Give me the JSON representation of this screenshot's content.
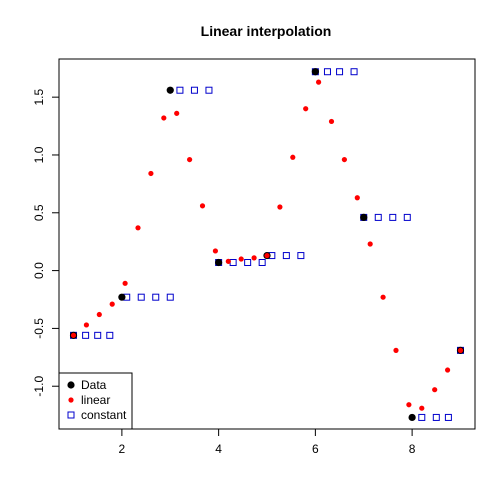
{
  "chart_data": {
    "type": "scatter",
    "title": "Linear interpolation",
    "xlabel": "",
    "ylabel": "",
    "xlim": [
      0.7,
      9.3
    ],
    "ylim": [
      -1.37,
      1.83
    ],
    "x_ticks": [
      2,
      4,
      6,
      8
    ],
    "y_ticks": [
      -1.0,
      -0.5,
      0.0,
      0.5,
      1.0,
      1.5
    ],
    "x_tick_labels": [
      "2",
      "4",
      "6",
      "8"
    ],
    "y_tick_labels": [
      "-1.0",
      "-0.5",
      "0.0",
      "0.5",
      "1.0",
      "1.5"
    ],
    "grid": false,
    "legend_position": "bottom-left",
    "series": [
      {
        "name": "Data",
        "marker": "filled-circle",
        "color": "#000000",
        "x": [
          1,
          2,
          3,
          4,
          5,
          6,
          7,
          8,
          9
        ],
        "y": [
          -0.56,
          -0.23,
          1.56,
          0.07,
          0.13,
          1.72,
          0.46,
          -1.27,
          -0.69
        ]
      },
      {
        "name": "linear",
        "marker": "filled-circle-small",
        "color": "#ff0000",
        "x": [
          1,
          1.2667,
          1.5333,
          1.8,
          2.0667,
          2.3333,
          2.6,
          2.8667,
          3.1333,
          3.4,
          3.6667,
          3.9333,
          4.2,
          4.4667,
          4.7333,
          5,
          5.2667,
          5.5333,
          5.8,
          6.0667,
          6.3333,
          6.6,
          6.8667,
          7.1333,
          7.4,
          7.6667,
          7.9333,
          8.2,
          8.4667,
          8.7333,
          9
        ],
        "y": [
          -0.56,
          -0.47,
          -0.38,
          -0.29,
          -0.11,
          0.37,
          0.84,
          1.32,
          1.36,
          0.96,
          0.56,
          0.17,
          0.08,
          0.1,
          0.11,
          0.13,
          0.55,
          0.98,
          1.4,
          1.63,
          1.29,
          0.96,
          0.63,
          0.23,
          -0.23,
          -0.69,
          -1.16,
          -1.19,
          -1.03,
          -0.86,
          -0.69
        ]
      },
      {
        "name": "constant",
        "marker": "open-square",
        "color": "#0000cc",
        "x": [
          1,
          1.25,
          1.5,
          1.75,
          2.1,
          2.4,
          2.7,
          3.0,
          3.2,
          3.5,
          3.8,
          4.0,
          4.3,
          4.6,
          4.9,
          5.1,
          5.4,
          5.7,
          6.0,
          6.25,
          6.5,
          6.8,
          7.0,
          7.3,
          7.6,
          7.9,
          8.2,
          8.5,
          8.75,
          9
        ],
        "y": [
          -0.56,
          -0.56,
          -0.56,
          -0.56,
          -0.23,
          -0.23,
          -0.23,
          -0.23,
          1.56,
          1.56,
          1.56,
          0.07,
          0.07,
          0.07,
          0.07,
          0.13,
          0.13,
          0.13,
          1.72,
          1.72,
          1.72,
          1.72,
          0.46,
          0.46,
          0.46,
          0.46,
          -1.27,
          -1.27,
          -1.27,
          -0.69
        ]
      }
    ]
  }
}
